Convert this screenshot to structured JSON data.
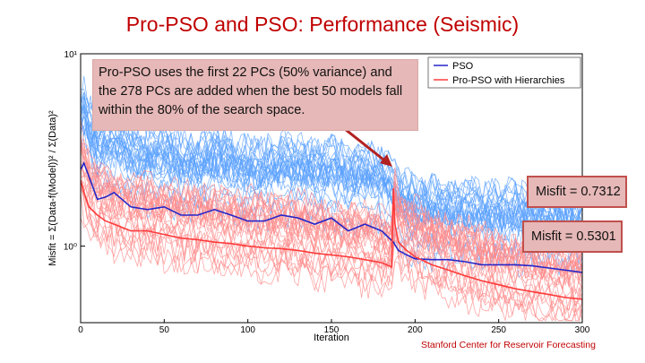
{
  "title": "Pro-PSO and PSO: Performance (Seismic)",
  "callout_main": "Pro-PSO uses the first 22 PCs (50% variance) and the 278 PCs are added when the best 50 models fall within the 80% of the search space.",
  "callout_misfit_pso": "Misfit = 0.7312",
  "callout_misfit_propso": "Misfit = 0.5301",
  "credit": "Stanford Center for Reservoir Forecasting",
  "chart_data": {
    "type": "line",
    "xlabel": "Iteration",
    "ylabel": "Misfit = Σ(Data-f(Model))² / Σ(Data)²",
    "xlim": [
      0,
      300
    ],
    "ylim": [
      0.4,
      10
    ],
    "yscale": "log",
    "xticks": [
      0,
      50,
      100,
      150,
      200,
      250,
      300
    ],
    "yticks": [
      {
        "value": 1,
        "label": "10⁰"
      },
      {
        "value": 10,
        "label": "10¹"
      }
    ],
    "legend_position": "top-right",
    "colors": {
      "pso": "#2626c8",
      "propso": "#ff3b3b",
      "pso_band": "#5aa0ff",
      "propso_band": "#ff8a8a"
    },
    "series": [
      {
        "name": "PSO",
        "x": [
          0,
          2,
          5,
          10,
          15,
          20,
          30,
          40,
          50,
          60,
          70,
          80,
          90,
          100,
          110,
          120,
          130,
          140,
          150,
          160,
          170,
          180,
          187,
          190,
          195,
          200,
          210,
          220,
          230,
          240,
          250,
          260,
          270,
          280,
          290,
          300
        ],
        "y": [
          2.5,
          2.7,
          2.3,
          1.75,
          1.8,
          1.9,
          1.6,
          1.55,
          1.6,
          1.45,
          1.45,
          1.55,
          1.45,
          1.35,
          1.35,
          1.45,
          1.4,
          1.3,
          1.4,
          1.2,
          1.3,
          1.2,
          1.05,
          0.95,
          0.9,
          0.86,
          0.85,
          0.85,
          0.83,
          0.8,
          0.8,
          0.8,
          0.79,
          0.77,
          0.75,
          0.73
        ]
      },
      {
        "name": "Pro-PSO with Hierarchies",
        "x": [
          0,
          2,
          5,
          10,
          15,
          20,
          30,
          40,
          50,
          60,
          70,
          80,
          90,
          100,
          110,
          120,
          130,
          140,
          150,
          160,
          170,
          180,
          186,
          187,
          188,
          190,
          195,
          200,
          210,
          220,
          230,
          240,
          250,
          260,
          270,
          280,
          290,
          300
        ],
        "y": [
          2.2,
          1.9,
          1.6,
          1.45,
          1.35,
          1.3,
          1.2,
          1.2,
          1.15,
          1.1,
          1.08,
          1.05,
          1.03,
          1.0,
          0.98,
          0.97,
          0.95,
          0.92,
          0.9,
          0.88,
          0.85,
          0.82,
          0.78,
          2.0,
          1.3,
          1.05,
          0.95,
          0.88,
          0.8,
          0.75,
          0.7,
          0.66,
          0.63,
          0.6,
          0.58,
          0.56,
          0.54,
          0.53
        ]
      }
    ]
  }
}
